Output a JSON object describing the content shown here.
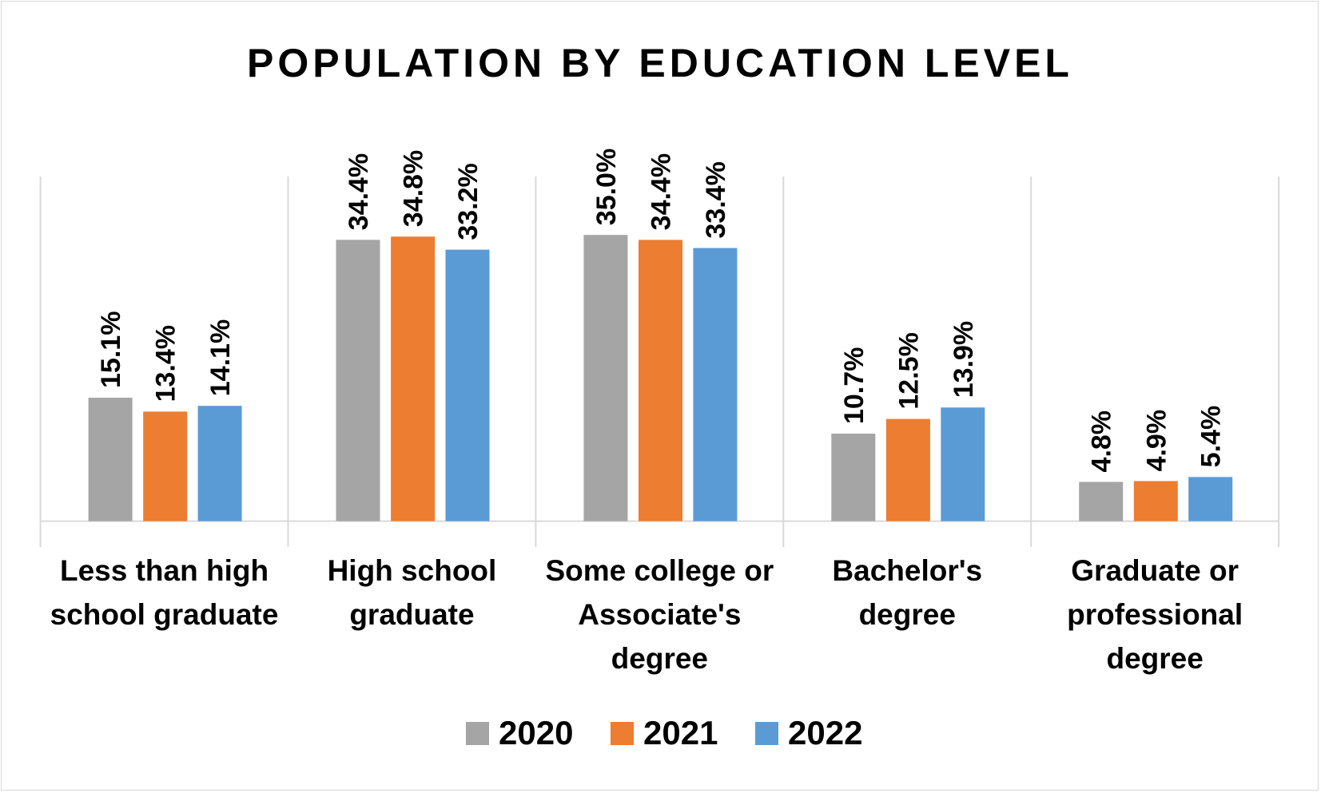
{
  "chart_data": {
    "type": "bar",
    "title": "POPULATION BY EDUCATION LEVEL",
    "xlabel": "",
    "ylabel": "",
    "ylim": [
      0,
      40
    ],
    "grid": false,
    "legend_position": "bottom",
    "categories": [
      [
        "Less than high",
        "school graduate"
      ],
      [
        "High school",
        "graduate"
      ],
      [
        "Some college or",
        "Associate's",
        "degree"
      ],
      [
        "Bachelor's",
        "degree"
      ],
      [
        "Graduate or",
        "professional",
        "degree"
      ]
    ],
    "series": [
      {
        "name": "2020",
        "color": "#a5a5a5",
        "values": [
          15.1,
          34.4,
          35.0,
          10.7,
          4.8
        ],
        "labels": [
          "15.1%",
          "34.4%",
          "35.0%",
          "10.7%",
          "4.8%"
        ]
      },
      {
        "name": "2021",
        "color": "#ed7d31",
        "values": [
          13.4,
          34.8,
          34.4,
          12.5,
          4.9
        ],
        "labels": [
          "13.4%",
          "34.8%",
          "34.4%",
          "12.5%",
          "4.9%"
        ]
      },
      {
        "name": "2022",
        "color": "#5b9bd5",
        "values": [
          14.1,
          33.2,
          33.4,
          13.9,
          5.4
        ],
        "labels": [
          "14.1%",
          "33.2%",
          "33.4%",
          "13.9%",
          "5.4%"
        ]
      }
    ]
  }
}
